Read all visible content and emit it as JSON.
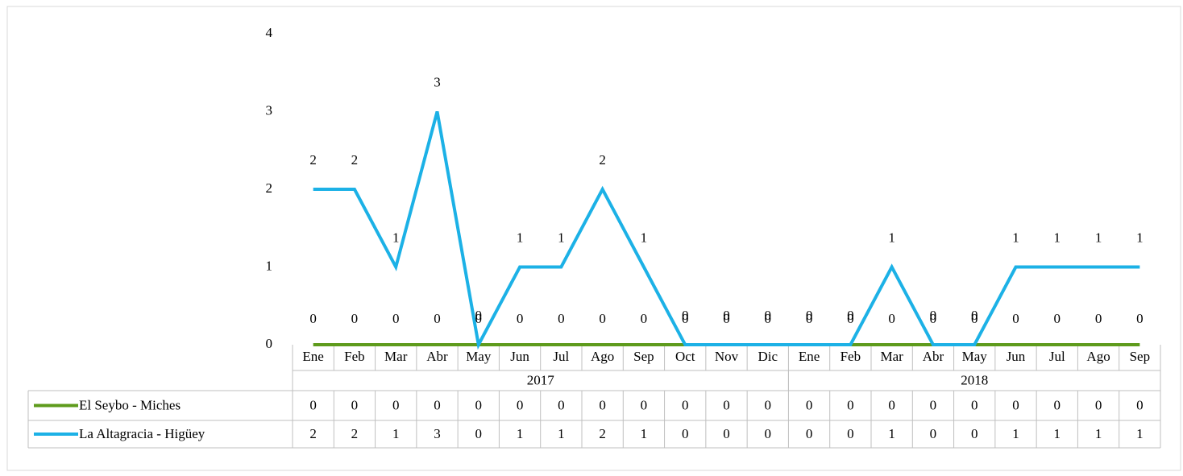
{
  "chart_data": {
    "type": "line",
    "groups": [
      {
        "label": "2017",
        "categories": [
          "Ene",
          "Feb",
          "Mar",
          "Abr",
          "May",
          "Jun",
          "Jul",
          "Ago",
          "Sep",
          "Oct",
          "Nov",
          "Dic"
        ]
      },
      {
        "label": "2018",
        "categories": [
          "Ene",
          "Feb",
          "Mar",
          "Abr",
          "May",
          "Jun",
          "Jul",
          "Ago",
          "Sep"
        ]
      }
    ],
    "series": [
      {
        "name": "El Seybo - Miches",
        "color": "#5e9b1c",
        "values": [
          0,
          0,
          0,
          0,
          0,
          0,
          0,
          0,
          0,
          0,
          0,
          0,
          0,
          0,
          0,
          0,
          0,
          0,
          0,
          0,
          0
        ]
      },
      {
        "name": "La Altagracia - Higüey",
        "color": "#1cb1e6",
        "values": [
          2,
          2,
          1,
          3,
          0,
          1,
          1,
          2,
          1,
          0,
          0,
          0,
          0,
          0,
          1,
          0,
          0,
          1,
          1,
          1,
          1
        ]
      }
    ],
    "ylim": [
      0,
      4
    ],
    "yticks": [
      0,
      1,
      2,
      3,
      4
    ],
    "data_labels": true,
    "data_table": true
  }
}
